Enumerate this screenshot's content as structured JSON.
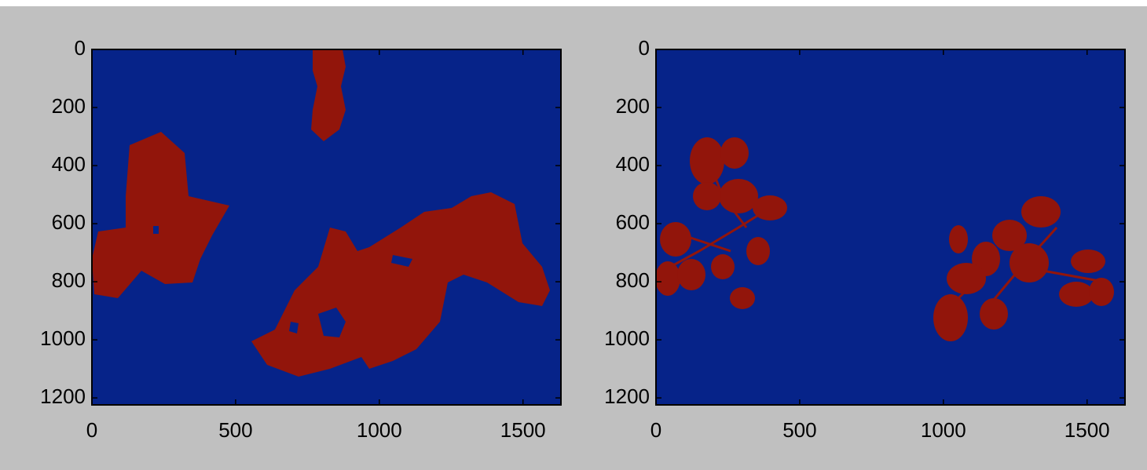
{
  "chart_data": [
    {
      "type": "image",
      "xlim": [
        0,
        1632
      ],
      "ylim": [
        1224,
        0
      ],
      "xticks": [
        0,
        500,
        1000,
        1500
      ],
      "yticks": [
        0,
        200,
        400,
        600,
        800,
        1000,
        1200
      ],
      "background_color": "#062389",
      "mask_color": "#92150b"
    },
    {
      "type": "image",
      "xlim": [
        0,
        1632
      ],
      "ylim": [
        1224,
        0
      ],
      "xticks": [
        0,
        500,
        1000,
        1500
      ],
      "yticks": [
        0,
        200,
        400,
        600,
        800,
        1000,
        1200
      ],
      "background_color": "#062389",
      "mask_color": "#92150b"
    }
  ]
}
